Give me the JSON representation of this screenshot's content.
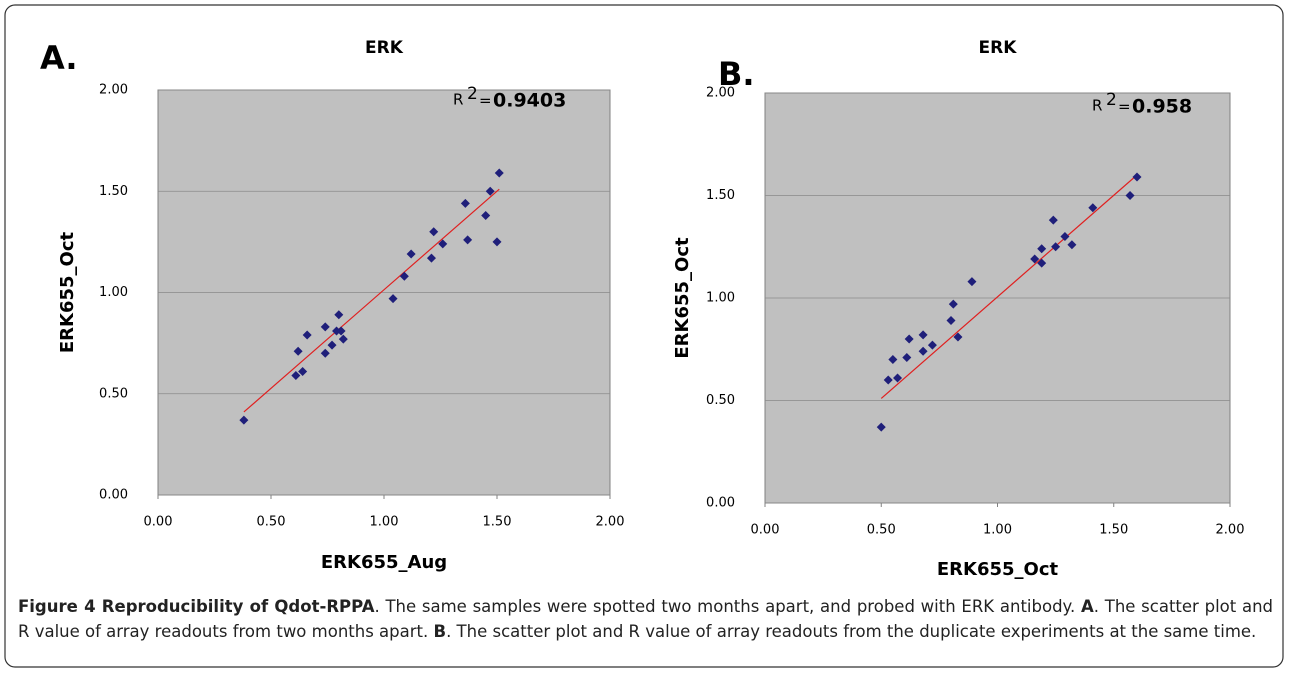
{
  "chart_data": [
    {
      "type": "scatter",
      "panel_label": "A.",
      "title": "ERK",
      "r2_symbol": "R",
      "r2_superscript": "2",
      "r2_equals": "=",
      "r_squared": 0.9403,
      "xlabel": "ERK655_Aug",
      "ylabel": "ERK655_Oct",
      "x": [
        0.38,
        0.61,
        0.62,
        0.64,
        0.66,
        0.74,
        0.74,
        0.77,
        0.79,
        0.8,
        0.81,
        0.82,
        1.04,
        1.09,
        1.12,
        1.21,
        1.22,
        1.26,
        1.36,
        1.37,
        1.45,
        1.47,
        1.5,
        1.51
      ],
      "y": [
        0.37,
        0.59,
        0.71,
        0.61,
        0.79,
        0.83,
        0.7,
        0.74,
        0.81,
        0.89,
        0.81,
        0.77,
        0.97,
        1.08,
        1.19,
        1.17,
        1.3,
        1.24,
        1.44,
        1.26,
        1.38,
        1.5,
        1.25,
        1.59
      ],
      "color": "#1f1f7a",
      "trendline": {
        "x": [
          0.38,
          1.51
        ],
        "y": [
          0.41,
          1.51
        ],
        "color": "#e02020"
      },
      "plot_background": "#c0c0c0",
      "xlim": [
        0,
        2
      ],
      "ylim": [
        0,
        2
      ],
      "grid": true,
      "xticks": [
        {
          "value": 0,
          "label": "0.00"
        },
        {
          "value": 0.5,
          "label": "0.50"
        },
        {
          "value": 1,
          "label": "1.00"
        },
        {
          "value": 1.5,
          "label": "1.50"
        },
        {
          "value": 2,
          "label": "2.00"
        }
      ],
      "yticks": [
        {
          "value": 0,
          "label": "0.00"
        },
        {
          "value": 0.5,
          "label": "0.50"
        },
        {
          "value": 1,
          "label": "1.00"
        },
        {
          "value": 1.5,
          "label": "1.50"
        },
        {
          "value": 2,
          "label": "2.00"
        }
      ]
    },
    {
      "type": "scatter",
      "panel_label": "B.",
      "title": "ERK",
      "r2_symbol": "R",
      "r2_superscript": "2",
      "r2_equals": "=",
      "r_squared": 0.958,
      "xlabel": "ERK655_Oct",
      "ylabel": "ERK655_Oct",
      "x": [
        0.5,
        0.53,
        0.55,
        0.57,
        0.61,
        0.62,
        0.68,
        0.68,
        0.72,
        0.8,
        0.81,
        0.83,
        0.89,
        1.16,
        1.19,
        1.19,
        1.24,
        1.25,
        1.29,
        1.32,
        1.41,
        1.57,
        1.6
      ],
      "y": [
        0.37,
        0.6,
        0.7,
        0.61,
        0.71,
        0.8,
        0.74,
        0.82,
        0.77,
        0.89,
        0.97,
        0.81,
        1.08,
        1.19,
        1.24,
        1.17,
        1.38,
        1.25,
        1.3,
        1.26,
        1.44,
        1.5,
        1.59
      ],
      "color": "#1f1f7a",
      "trendline": {
        "x": [
          0.5,
          1.6
        ],
        "y": [
          0.51,
          1.6
        ],
        "color": "#e02020"
      },
      "plot_background": "#c0c0c0",
      "xlim": [
        0,
        2
      ],
      "ylim": [
        0,
        2
      ],
      "grid": true,
      "xticks": [
        {
          "value": 0,
          "label": "0.00"
        },
        {
          "value": 0.5,
          "label": "0.50"
        },
        {
          "value": 1,
          "label": "1.00"
        },
        {
          "value": 1.5,
          "label": "1.50"
        },
        {
          "value": 2,
          "label": "2.00"
        }
      ],
      "yticks": [
        {
          "value": 0,
          "label": "0.00"
        },
        {
          "value": 0.5,
          "label": "0.50"
        },
        {
          "value": 1,
          "label": "1.00"
        },
        {
          "value": 1.5,
          "label": "1.50"
        },
        {
          "value": 2,
          "label": "2.00"
        }
      ]
    }
  ],
  "caption": [
    {
      "text": "Figure 4 Reproducibility of Qdot-RPPA",
      "bold": true
    },
    {
      "text": ". The same samples were spotted two months apart, and probed with ERK antibody. ",
      "bold": false
    },
    {
      "text": "A",
      "bold": true
    },
    {
      "text": ". The scatter plot and R value of array readouts from two months apart. ",
      "bold": false
    },
    {
      "text": "B",
      "bold": true
    },
    {
      "text": ". The scatter plot and R value of array readouts from the duplicate experiments at the same time.",
      "bold": false
    }
  ]
}
